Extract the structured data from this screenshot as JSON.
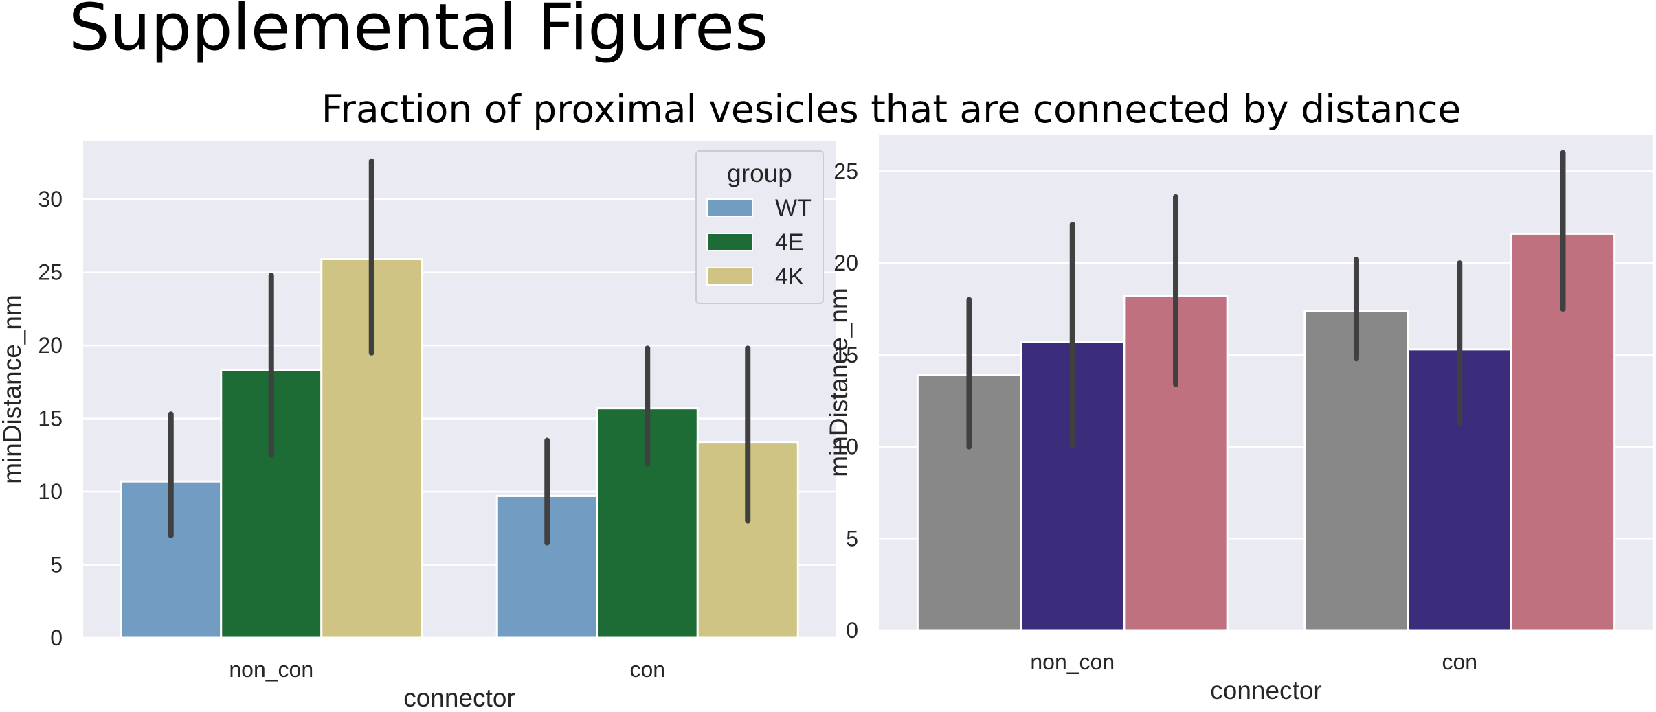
{
  "page": {
    "title": "Supplemental Figures",
    "subtitle": "Fraction of proximal vesicles that are connected by distance"
  },
  "colors": {
    "panel_bg": "#EAEAF2",
    "grid": "#FFFFFF",
    "error_bar": "#404040"
  },
  "chart_data": [
    {
      "type": "bar",
      "title": "",
      "xlabel": "connector",
      "ylabel": "minDistance_nm",
      "categories": [
        "non_con",
        "con"
      ],
      "ylim": [
        0,
        34
      ],
      "yticks": [
        0,
        5,
        10,
        15,
        20,
        25,
        30
      ],
      "grid": true,
      "legend": {
        "title": "group",
        "position": "top-right",
        "entries": [
          "WT",
          "4E",
          "4K"
        ]
      },
      "series": [
        {
          "name": "WT",
          "color": "#739CC2",
          "values": [
            10.7,
            9.7
          ],
          "ci_low": [
            7.0,
            6.5
          ],
          "ci_high": [
            15.3,
            13.5
          ]
        },
        {
          "name": "4E",
          "color": "#1D6B35",
          "values": [
            18.3,
            15.7
          ],
          "ci_low": [
            12.5,
            11.9
          ],
          "ci_high": [
            24.8,
            19.8
          ]
        },
        {
          "name": "4K",
          "color": "#CFC483",
          "values": [
            25.9,
            13.4
          ],
          "ci_low": [
            19.5,
            8.0
          ],
          "ci_high": [
            32.6,
            19.8
          ]
        }
      ]
    },
    {
      "type": "bar",
      "title": "",
      "xlabel": "connector",
      "ylabel": "minDistance_nm",
      "categories": [
        "non_con",
        "con"
      ],
      "ylim": [
        0,
        27
      ],
      "yticks": [
        0,
        5,
        10,
        15,
        20,
        25
      ],
      "grid": true,
      "series": [
        {
          "color": "#888888",
          "values": [
            13.9,
            17.4
          ],
          "ci_low": [
            10.0,
            14.8
          ],
          "ci_high": [
            18.0,
            20.2
          ]
        },
        {
          "color": "#3B2D7C",
          "values": [
            15.7,
            15.3
          ],
          "ci_low": [
            10.1,
            11.3
          ],
          "ci_high": [
            22.1,
            20.0
          ]
        },
        {
          "color": "#C0717F",
          "values": [
            18.2,
            21.6
          ],
          "ci_low": [
            13.4,
            17.5
          ],
          "ci_high": [
            23.6,
            26.0
          ]
        }
      ]
    }
  ]
}
